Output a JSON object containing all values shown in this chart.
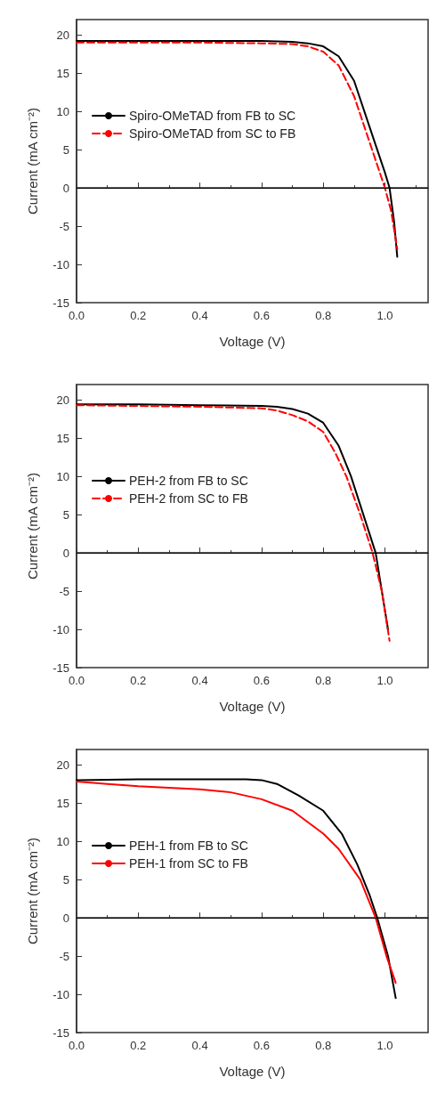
{
  "chart_data": [
    {
      "type": "line",
      "xlabel": "Voltage (V)",
      "ylabel": "Current (mA cm⁻²)",
      "xlim": [
        0,
        1.14
      ],
      "ylim": [
        -15,
        22
      ],
      "xticks": [
        {
          "value": 0,
          "label": "0.0"
        },
        {
          "value": 0.2,
          "label": "0.2"
        },
        {
          "value": 0.4,
          "label": "0.4"
        },
        {
          "value": 0.6,
          "label": "0.6"
        },
        {
          "value": 0.8,
          "label": "0.8"
        },
        {
          "value": 1,
          "label": "1.0"
        }
      ],
      "yticks": [
        -15,
        -10,
        -5,
        0,
        5,
        10,
        15,
        20
      ],
      "grid": false,
      "legend": "left",
      "marker": "none",
      "ref_lines": [
        {
          "axis": "y",
          "value": 0,
          "color": "#000000"
        }
      ],
      "series": [
        {
          "name": "Spiro-OMeTAD from FB to SC",
          "color": "#000000",
          "line_style": "solid",
          "x": [
            0,
            0.2,
            0.4,
            0.6,
            0.7,
            0.75,
            0.8,
            0.85,
            0.9,
            0.95,
            1.0,
            1.015,
            1.03,
            1.04
          ],
          "values": [
            19.2,
            19.2,
            19.2,
            19.2,
            19.1,
            18.9,
            18.5,
            17.2,
            14,
            8,
            2,
            0,
            -4.5,
            -9
          ]
        },
        {
          "name": "Spiro-OMeTAD from SC to FB",
          "color": "#ff0000",
          "line_style": "dashed",
          "x": [
            0,
            0.2,
            0.4,
            0.6,
            0.7,
            0.75,
            0.8,
            0.85,
            0.9,
            0.95,
            1.0,
            1.02,
            1.04
          ],
          "values": [
            19,
            19,
            19,
            18.9,
            18.8,
            18.5,
            17.8,
            16,
            12,
            6,
            0,
            -3,
            -8
          ]
        }
      ]
    },
    {
      "type": "line",
      "xlabel": "Voltage (V)",
      "ylabel": "Current (mA cm⁻²)",
      "xlim": [
        0,
        1.14
      ],
      "ylim": [
        -15,
        22
      ],
      "xticks": [
        {
          "value": 0,
          "label": "0.0"
        },
        {
          "value": 0.2,
          "label": "0.2"
        },
        {
          "value": 0.4,
          "label": "0.4"
        },
        {
          "value": 0.6,
          "label": "0.6"
        },
        {
          "value": 0.8,
          "label": "0.8"
        },
        {
          "value": 1,
          "label": "1.0"
        }
      ],
      "yticks": [
        -15,
        -10,
        -5,
        0,
        5,
        10,
        15,
        20
      ],
      "grid": false,
      "legend": "left",
      "marker": "none",
      "ref_lines": [
        {
          "axis": "y",
          "value": 0,
          "color": "#000000"
        }
      ],
      "series": [
        {
          "name": "PEH-2 from FB to SC",
          "color": "#000000",
          "line_style": "solid",
          "x": [
            0,
            0.2,
            0.4,
            0.6,
            0.65,
            0.7,
            0.75,
            0.8,
            0.85,
            0.89,
            0.93,
            0.97,
            0.99,
            1.01
          ],
          "values": [
            19.4,
            19.4,
            19.3,
            19.2,
            19.1,
            18.8,
            18.2,
            17,
            14,
            10,
            5,
            0,
            -5,
            -10
          ]
        },
        {
          "name": "PEH-2 from SC to FB",
          "color": "#ff0000",
          "line_style": "dashed",
          "x": [
            0,
            0.2,
            0.4,
            0.6,
            0.65,
            0.7,
            0.75,
            0.8,
            0.84,
            0.875,
            0.92,
            0.96,
            0.99,
            1.015
          ],
          "values": [
            19.3,
            19.2,
            19.1,
            18.9,
            18.6,
            18,
            17.2,
            15.8,
            13,
            10,
            5,
            0,
            -5,
            -11.5
          ]
        }
      ]
    },
    {
      "type": "line",
      "xlabel": "Voltage (V)",
      "ylabel": "Current (mA cm⁻²)",
      "xlim": [
        0,
        1.14
      ],
      "ylim": [
        -15,
        22
      ],
      "xticks": [
        {
          "value": 0,
          "label": "0.0"
        },
        {
          "value": 0.2,
          "label": "0.2"
        },
        {
          "value": 0.4,
          "label": "0.4"
        },
        {
          "value": 0.6,
          "label": "0.6"
        },
        {
          "value": 0.8,
          "label": "0.8"
        },
        {
          "value": 1,
          "label": "1.0"
        }
      ],
      "yticks": [
        -15,
        -10,
        -5,
        0,
        5,
        10,
        15,
        20
      ],
      "grid": false,
      "legend": "left",
      "marker": "none",
      "ref_lines": [
        {
          "axis": "y",
          "value": 0,
          "color": "#000000"
        }
      ],
      "series": [
        {
          "name": "PEH-1 from FB to SC",
          "color": "#000000",
          "line_style": "solid",
          "x": [
            0,
            0.2,
            0.4,
            0.55,
            0.6,
            0.65,
            0.72,
            0.8,
            0.86,
            0.91,
            0.95,
            0.975,
            1.01,
            1.035
          ],
          "values": [
            18,
            18.1,
            18.1,
            18.1,
            18,
            17.5,
            16,
            14,
            11,
            7,
            3,
            0,
            -5,
            -10.5
          ]
        },
        {
          "name": "PEH-1 from SC to FB",
          "color": "#ff0000",
          "line_style": "solid",
          "x": [
            0,
            0.1,
            0.2,
            0.3,
            0.4,
            0.5,
            0.6,
            0.7,
            0.8,
            0.85,
            0.92,
            0.97,
            1.005,
            1.035
          ],
          "values": [
            17.8,
            17.5,
            17.2,
            17,
            16.8,
            16.4,
            15.5,
            14,
            11,
            9,
            5,
            0,
            -5,
            -8.5
          ]
        }
      ]
    }
  ]
}
